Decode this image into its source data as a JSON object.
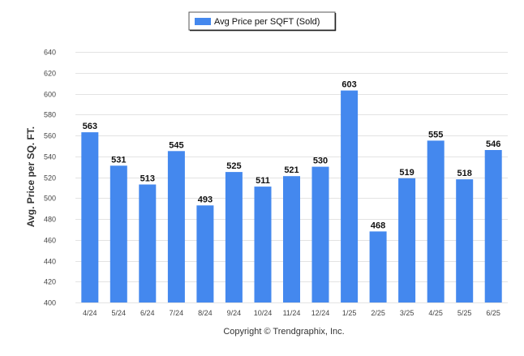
{
  "chart_data": {
    "type": "bar",
    "categories": [
      "4/24",
      "5/24",
      "6/24",
      "7/24",
      "8/24",
      "9/24",
      "10/24",
      "11/24",
      "12/24",
      "1/25",
      "2/25",
      "3/25",
      "4/25",
      "5/25",
      "6/25"
    ],
    "series": [
      {
        "name": "Avg Price per SQFT (Sold)",
        "values": [
          563,
          531,
          513,
          545,
          493,
          525,
          511,
          521,
          530,
          603,
          468,
          519,
          555,
          518,
          546
        ]
      }
    ],
    "ylabel": "Avg. Price per SQ. FT.",
    "xlabel": "",
    "ylim": [
      400,
      640
    ],
    "yticks": [
      400,
      420,
      440,
      460,
      480,
      500,
      520,
      540,
      560,
      580,
      600,
      620,
      640
    ],
    "grid": true,
    "legend": "top-center",
    "bar_color": "#4488ee",
    "data_labels": true
  },
  "footer": {
    "copyright": "Copyright © Trendgraphix, Inc."
  }
}
